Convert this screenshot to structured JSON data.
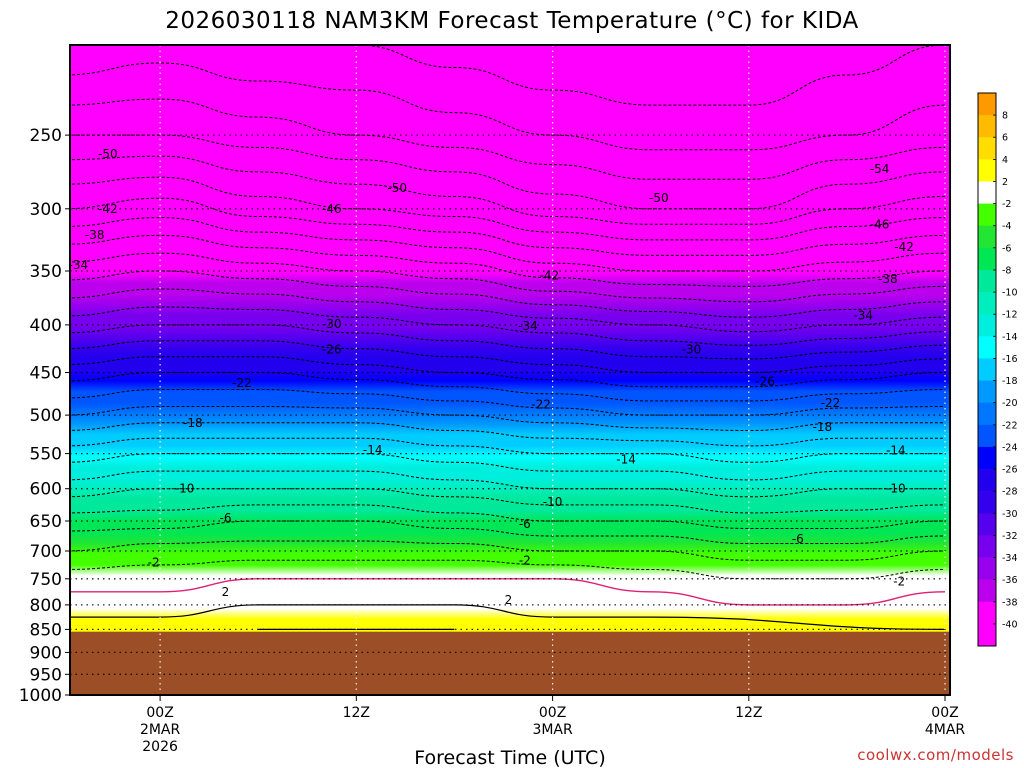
{
  "chart_data": {
    "type": "contour",
    "title": "2026030118 NAM3KM Forecast Temperature (°C) for KIDA",
    "xlabel": "Forecast Time (UTC)",
    "ylabel": "",
    "credit": "coolwx.com/models",
    "y_axis": {
      "unit": "hPa",
      "range": [
        1000,
        200
      ],
      "ticks": [
        250,
        300,
        350,
        400,
        450,
        500,
        550,
        600,
        650,
        700,
        750,
        800,
        850,
        900,
        950,
        1000
      ]
    },
    "x_axis": {
      "unit": "hours since 2026-03-01 18Z",
      "range": [
        0,
        54
      ],
      "ticks": [
        {
          "hour": 6,
          "lines": [
            "00Z",
            "2MAR",
            "2026"
          ]
        },
        {
          "hour": 18,
          "lines": [
            "12Z"
          ]
        },
        {
          "hour": 30,
          "lines": [
            "00Z",
            "3MAR"
          ]
        },
        {
          "hour": 42,
          "lines": [
            "12Z"
          ]
        },
        {
          "hour": 54,
          "lines": [
            "00Z",
            "4MAR"
          ]
        }
      ]
    },
    "terrain_pressure_hPa": 855,
    "colorbar": {
      "levels": [
        8,
        6,
        4,
        2,
        -2,
        -4,
        -6,
        -8,
        -10,
        -12,
        -14,
        -16,
        -18,
        -20,
        -22,
        -24,
        -26,
        -28,
        -30,
        -32,
        -34,
        -36,
        -38,
        -40
      ],
      "colors": [
        "#ff9900",
        "#ffbb00",
        "#ffdd00",
        "#ffff00",
        "#ffffff",
        "#44ff00",
        "#22e633",
        "#00e655",
        "#00e899",
        "#00eebb",
        "#00eedd",
        "#00ffff",
        "#00ccff",
        "#0099ff",
        "#0077ff",
        "#0055ff",
        "#0000ff",
        "#2200ee",
        "#3300ee",
        "#5500ee",
        "#7700ee",
        "#9900ee",
        "#bb00ee",
        "#ff00ff",
        "#ff00ff"
      ]
    },
    "profiles": {
      "hours": [
        0,
        6,
        12,
        18,
        24,
        30,
        36,
        42,
        48,
        54
      ],
      "pressure_levels_hPa": [
        850,
        800,
        750,
        700,
        650,
        600,
        550,
        500,
        450,
        400,
        350,
        300,
        250,
        200
      ],
      "temperature_C": [
        [
          3,
          1,
          -1,
          -4,
          -7,
          -11,
          -15,
          -20,
          -25,
          -31,
          -37,
          -44,
          -50,
          -56
        ],
        [
          3,
          1,
          -1,
          -3,
          -7,
          -10,
          -14,
          -19,
          -24,
          -30,
          -36,
          -43,
          -50,
          -55
        ],
        [
          4,
          2,
          0,
          -3,
          -6,
          -10,
          -14,
          -19,
          -24,
          -30,
          -37,
          -45,
          -51,
          -56
        ],
        [
          4,
          2,
          0,
          -3,
          -6,
          -10,
          -14,
          -19,
          -25,
          -31,
          -38,
          -46,
          -52,
          -56
        ],
        [
          4,
          2,
          0,
          -3,
          -7,
          -11,
          -15,
          -20,
          -26,
          -32,
          -39,
          -47,
          -53,
          -57
        ],
        [
          3,
          1,
          0,
          -4,
          -8,
          -12,
          -16,
          -21,
          -27,
          -33,
          -41,
          -49,
          -54,
          -58
        ],
        [
          3,
          1,
          -1,
          -4,
          -8,
          -12,
          -16,
          -22,
          -28,
          -34,
          -42,
          -50,
          -55,
          -58
        ],
        [
          1,
          0,
          -2,
          -5,
          -9,
          -13,
          -17,
          -22,
          -28,
          -35,
          -42,
          -50,
          -55,
          -58
        ],
        [
          1,
          0,
          -2,
          -5,
          -9,
          -12,
          -16,
          -21,
          -27,
          -34,
          -41,
          -48,
          -54,
          -57
        ],
        [
          2,
          1,
          -1,
          -4,
          -8,
          -12,
          -16,
          -21,
          -26,
          -33,
          -40,
          -47,
          -53,
          -56
        ]
      ]
    },
    "contour_labels": [
      {
        "value": "-50",
        "hour": 2.8,
        "p": 262
      },
      {
        "value": "-50",
        "hour": 20.5,
        "p": 285
      },
      {
        "value": "-50",
        "hour": 36.5,
        "p": 292
      },
      {
        "value": "-54",
        "hour": 50.0,
        "p": 272
      },
      {
        "value": "-42",
        "hour": 2.8,
        "p": 300
      },
      {
        "value": "-46",
        "hour": 16.5,
        "p": 300
      },
      {
        "value": "-46",
        "hour": 50.0,
        "p": 312
      },
      {
        "value": "-38",
        "hour": 2.0,
        "p": 320
      },
      {
        "value": "-42",
        "hour": 29.8,
        "p": 354
      },
      {
        "value": "-42",
        "hour": 51.5,
        "p": 330
      },
      {
        "value": "-34",
        "hour": 1.0,
        "p": 345
      },
      {
        "value": "-38",
        "hour": 50.5,
        "p": 357
      },
      {
        "value": "-34",
        "hour": 28.5,
        "p": 401
      },
      {
        "value": "-34",
        "hour": 49.0,
        "p": 391
      },
      {
        "value": "-30",
        "hour": 16.5,
        "p": 399
      },
      {
        "value": "-30",
        "hour": 38.5,
        "p": 425
      },
      {
        "value": "-26",
        "hour": 16.5,
        "p": 425
      },
      {
        "value": "-26",
        "hour": 43.0,
        "p": 460
      },
      {
        "value": "-22",
        "hour": 11.0,
        "p": 462
      },
      {
        "value": "-22",
        "hour": 29.3,
        "p": 487
      },
      {
        "value": "-22",
        "hour": 47.0,
        "p": 485
      },
      {
        "value": "-18",
        "hour": 8.0,
        "p": 510
      },
      {
        "value": "-18",
        "hour": 46.5,
        "p": 515
      },
      {
        "value": "-14",
        "hour": 19.0,
        "p": 545
      },
      {
        "value": "-14",
        "hour": 34.5,
        "p": 558
      },
      {
        "value": "-14",
        "hour": 51.0,
        "p": 546
      },
      {
        "value": "-10",
        "hour": 7.5,
        "p": 600
      },
      {
        "value": "-10",
        "hour": 30.0,
        "p": 620
      },
      {
        "value": "-10",
        "hour": 51.0,
        "p": 600
      },
      {
        "value": "-6",
        "hour": 10.0,
        "p": 645
      },
      {
        "value": "-6",
        "hour": 28.3,
        "p": 655
      },
      {
        "value": "-6",
        "hour": 45.0,
        "p": 680
      },
      {
        "value": "-2",
        "hour": 5.6,
        "p": 720
      },
      {
        "value": "-2",
        "hour": 28.3,
        "p": 717
      },
      {
        "value": "-2",
        "hour": 51.2,
        "p": 755
      },
      {
        "value": "2",
        "hour": 10.0,
        "p": 775
      },
      {
        "value": "2",
        "hour": 27.3,
        "p": 790
      }
    ]
  }
}
